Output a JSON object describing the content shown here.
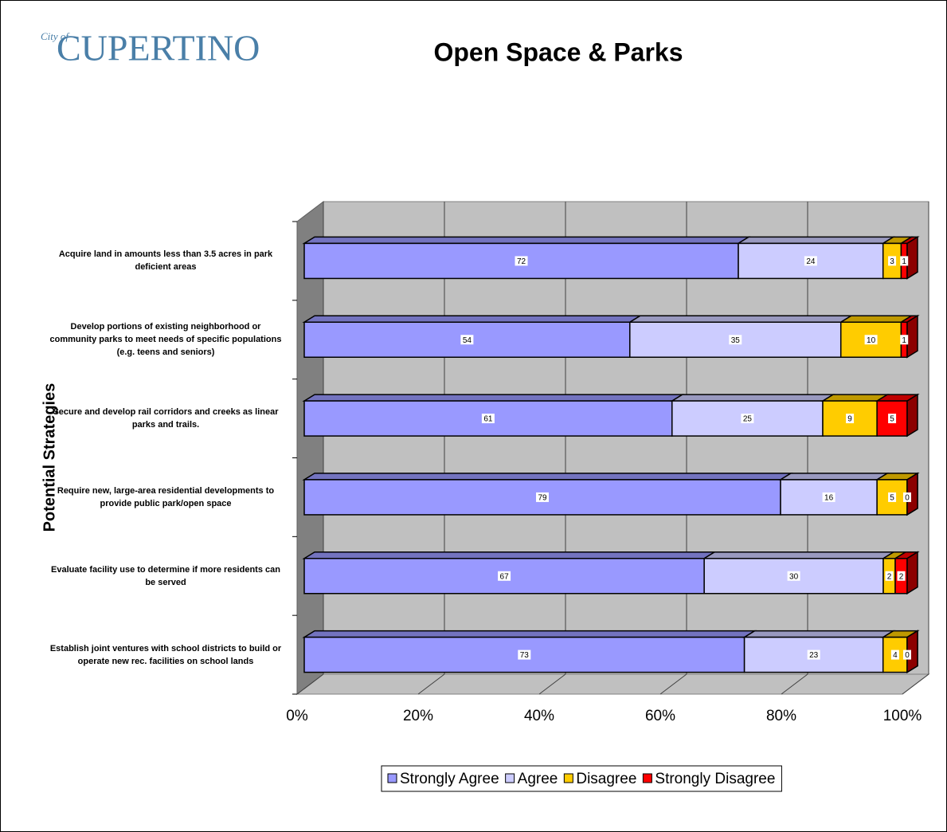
{
  "logo": {
    "prefix": "City of",
    "name": "CUPERTINO"
  },
  "chart_data": {
    "type": "bar",
    "orientation": "horizontal",
    "stacking": "percent",
    "title": "Open Space & Parks",
    "y_label": "Potential Strategies",
    "categories": [
      "Acquire land in amounts less than 3.5 acres in park deficient areas",
      "Develop portions of existing neighborhood or community parks to meet needs of specific populations (e.g. teens and seniors)",
      "Secure and develop rail corridors and creeks as linear parks and trails.",
      "Require new, large-area residential developments to provide public park/open space",
      "Evaluate facility use to determine if more residents can be served",
      "Establish joint ventures with school districts to build or operate new rec. facilities on school lands"
    ],
    "series": [
      {
        "name": "Strongly Agree",
        "color": "#9999ff",
        "values": [
          72,
          54,
          61,
          79,
          67,
          73
        ]
      },
      {
        "name": "Agree",
        "color": "#ccccff",
        "values": [
          24,
          35,
          25,
          16,
          30,
          23
        ]
      },
      {
        "name": "Disagree",
        "color": "#ffcc00",
        "values": [
          3,
          10,
          9,
          5,
          2,
          4
        ]
      },
      {
        "name": "Strongly Disagree",
        "color": "#ff0000",
        "values": [
          1,
          1,
          5,
          0,
          2,
          0
        ]
      }
    ],
    "xlim": [
      0,
      100
    ],
    "xticks": [
      {
        "value": 0,
        "label": "0%"
      },
      {
        "value": 20,
        "label": "20%"
      },
      {
        "value": 40,
        "label": "40%"
      },
      {
        "value": 60,
        "label": "60%"
      },
      {
        "value": 80,
        "label": "80%"
      },
      {
        "value": 100,
        "label": "100%"
      }
    ],
    "grid": true,
    "legend": "bottom"
  }
}
